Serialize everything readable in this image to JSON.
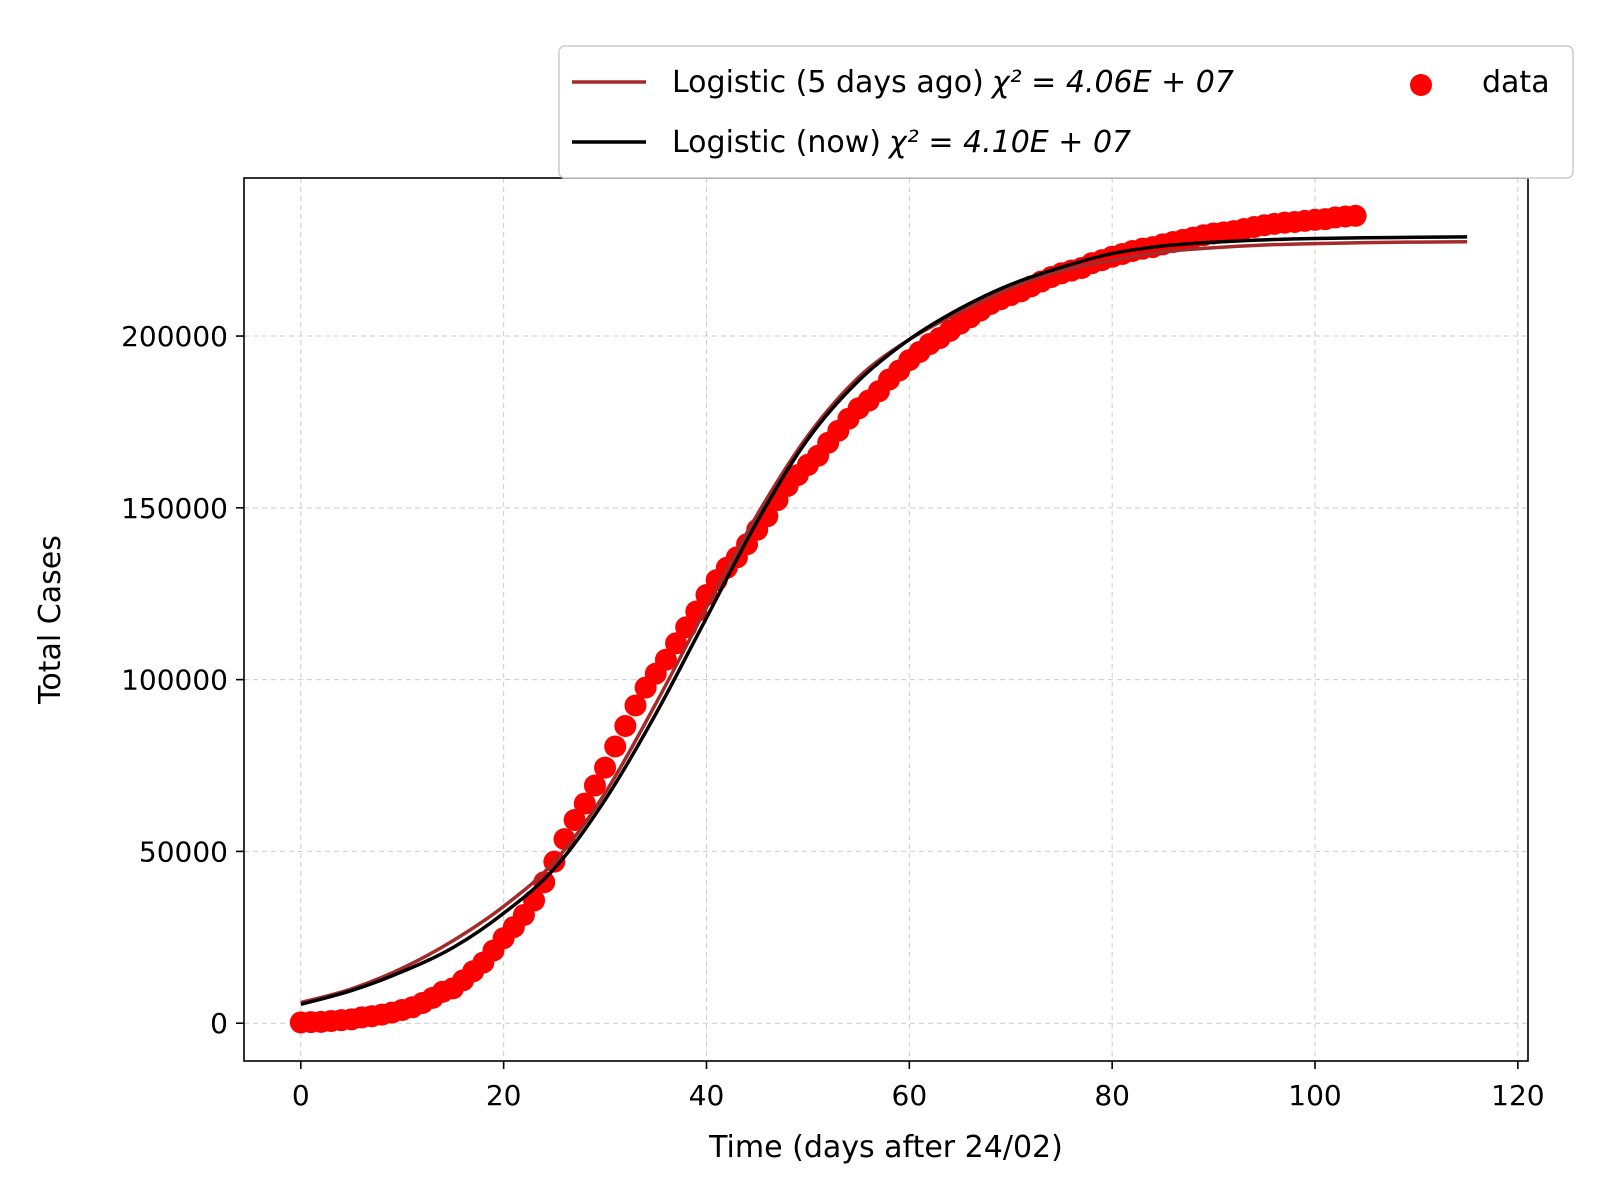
{
  "chart_data": {
    "type": "line",
    "xlabel": "Time (days after 24/02)",
    "ylabel": "Total Cases",
    "xlim": [
      -5.6,
      121
    ],
    "ylim": [
      -11000,
      246000
    ],
    "x_ticks": [
      0,
      20,
      40,
      60,
      80,
      100,
      120
    ],
    "y_ticks": [
      0,
      50000,
      100000,
      150000,
      200000
    ],
    "x_tick_labels": [
      "0",
      "20",
      "40",
      "60",
      "80",
      "100",
      "120"
    ],
    "y_tick_labels": [
      "0",
      "50000",
      "100000",
      "150000",
      "200000"
    ],
    "grid": true,
    "legend_placement": "above-top-right",
    "series": [
      {
        "name": "Logistic (5 days ago)",
        "chi2_label": "χ² = 4.06E + 07",
        "type": "line",
        "color": "#a52a2a",
        "x": [
          0,
          5,
          10,
          15,
          20,
          25,
          30,
          35,
          40,
          45,
          50,
          55,
          60,
          65,
          70,
          75,
          80,
          85,
          90,
          95,
          100,
          105,
          110,
          115
        ],
        "y": [
          6000,
          10000,
          16000,
          24000,
          34000,
          47000,
          67000,
          93000,
          121000,
          148000,
          171000,
          188000,
          199000,
          207000,
          214000,
          219000,
          222000,
          224500,
          225700,
          226500,
          226900,
          227200,
          227350,
          227450
        ]
      },
      {
        "name": "Logistic (now)",
        "chi2_label": "χ² = 4.10E + 07",
        "type": "line",
        "color": "#000000",
        "x": [
          0,
          5,
          10,
          15,
          20,
          25,
          30,
          35,
          40,
          45,
          50,
          55,
          60,
          65,
          70,
          75,
          80,
          85,
          90,
          95,
          100,
          105,
          110,
          115
        ],
        "y": [
          5500,
          9500,
          15000,
          22000,
          32000,
          45000,
          65000,
          90000,
          118000,
          146000,
          170000,
          187000,
          199000,
          208000,
          215000,
          220000,
          224000,
          226200,
          227300,
          228000,
          228400,
          228600,
          228750,
          228850
        ]
      },
      {
        "name": "data",
        "type": "scatter",
        "color": "#ff0000",
        "x": [
          0,
          1,
          2,
          3,
          4,
          5,
          6,
          7,
          8,
          9,
          10,
          11,
          12,
          13,
          14,
          15,
          16,
          17,
          18,
          19,
          20,
          21,
          22,
          23,
          24,
          25,
          26,
          27,
          28,
          29,
          30,
          31,
          32,
          33,
          34,
          35,
          36,
          37,
          38,
          39,
          40,
          41,
          42,
          43,
          44,
          45,
          46,
          47,
          48,
          49,
          50,
          51,
          52,
          53,
          54,
          55,
          56,
          57,
          58,
          59,
          60,
          61,
          62,
          63,
          64,
          65,
          66,
          67,
          68,
          69,
          70,
          71,
          72,
          73,
          74,
          75,
          76,
          77,
          78,
          79,
          80,
          81,
          82,
          83,
          84,
          85,
          86,
          87,
          88,
          89,
          90,
          91,
          92,
          93,
          94,
          95,
          96,
          97,
          98,
          99,
          100,
          101,
          102,
          103,
          104
        ],
        "y": [
          229,
          322,
          400,
          650,
          888,
          1128,
          1689,
          2036,
          2502,
          3089,
          3858,
          4636,
          5883,
          7375,
          9172,
          10149,
          12462,
          15113,
          17660,
          21157,
          24747,
          27980,
          31506,
          35713,
          41035,
          47021,
          53578,
          59138,
          63927,
          69176,
          74386,
          80539,
          86498,
          92472,
          97689,
          101739,
          105792,
          110574,
          115242,
          119827,
          124632,
          128948,
          132547,
          135586,
          139422,
          143626,
          147577,
          152271,
          156363,
          159516,
          162488,
          165155,
          168941,
          172434,
          175925,
          178972,
          181228,
          183957,
          187327,
          189973,
          192994,
          195351,
          197675,
          199414,
          201505,
          203591,
          205463,
          207428,
          209328,
          210717,
          211938,
          213013,
          214457,
          215858,
          217185,
          218268,
          219070,
          219814,
          221216,
          222104,
          223096,
          223885,
          224760,
          225435,
          225886,
          226699,
          227364,
          228006,
          228658,
          229327,
          229858,
          230158,
          230555,
          231139,
          231732,
          232248,
          232664,
          232997,
          233197,
          233515,
          233836,
          234013,
          234531,
          234801,
          234998
        ]
      }
    ]
  }
}
